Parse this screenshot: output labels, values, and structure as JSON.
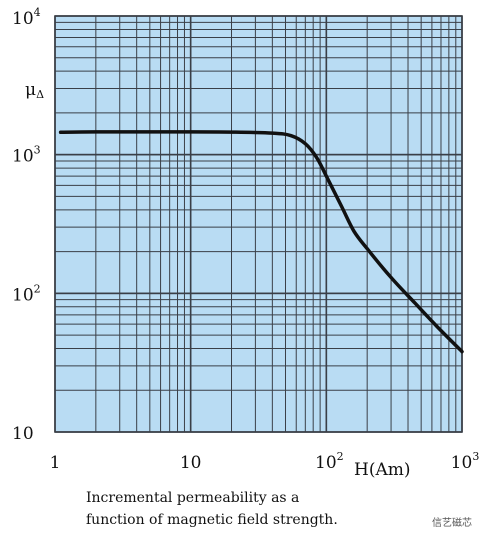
{
  "chart_data": {
    "type": "line",
    "scale": {
      "x": "log",
      "y": "log"
    },
    "xlim": [
      1,
      1000
    ],
    "ylim": [
      10,
      10000
    ],
    "grid": true,
    "background_color": "#b9dcf3",
    "grid_color": "#3a3f47",
    "line_color": "#111111",
    "x_ticks": [
      {
        "base": "1",
        "exp": ""
      },
      {
        "base": "10",
        "exp": ""
      },
      {
        "base": "10",
        "exp": "2"
      },
      {
        "base": "10",
        "exp": "3"
      }
    ],
    "y_ticks": [
      {
        "base": "10",
        "exp": ""
      },
      {
        "base": "10",
        "exp": "2"
      },
      {
        "base": "10",
        "exp": "3"
      },
      {
        "base": "10",
        "exp": "4"
      }
    ],
    "xlabel": "H(Am)",
    "ylabel_main": "μ",
    "ylabel_sub": "Δ",
    "series": [
      {
        "x": [
          1.1,
          2,
          5,
          10,
          20,
          40,
          55,
          70,
          85,
          100,
          130,
          160,
          200,
          300,
          450,
          650,
          1000
        ],
        "y": [
          1450,
          1460,
          1460,
          1460,
          1455,
          1430,
          1370,
          1200,
          950,
          700,
          420,
          280,
          210,
          130,
          85,
          58,
          38
        ]
      }
    ]
  },
  "caption": {
    "line1": "Incremental permeability as a",
    "line2": "function of magnetic field strength."
  },
  "watermark": "信艺磁芯"
}
